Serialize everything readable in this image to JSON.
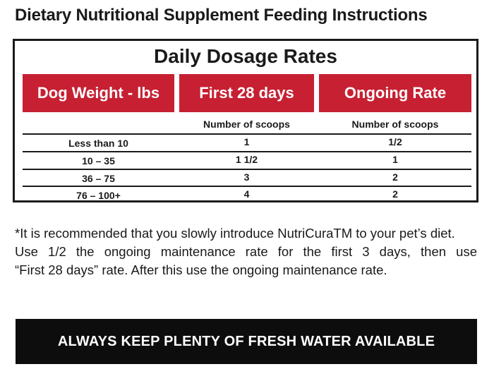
{
  "page_title": "Dietary Nutritional Supplement Feeding Instructions",
  "table": {
    "title": "Daily Dosage Rates",
    "headers": [
      "Dog Weight - lbs",
      "First 28 days",
      "Ongoing Rate"
    ],
    "subheaders": [
      "",
      "Number of scoops",
      "Number of scoops"
    ],
    "rows": [
      [
        "Less than 10",
        "1",
        "1/2"
      ],
      [
        "10 – 35",
        "1 1/2",
        "1"
      ],
      [
        "36 – 75",
        "3",
        "2"
      ],
      [
        "76 – 100+",
        "4",
        "2"
      ]
    ]
  },
  "note": {
    "line1": "*It is recommended that you slowly introduce NutriCuraTM to your pet’s diet.",
    "line2": "Use 1/2 the ongoing maintenance rate for the first 3 days, then use",
    "line3": "“First 28 days” rate. After this use the ongoing maintenance rate."
  },
  "banner": "ALWAYS KEEP PLENTY OF FRESH WATER AVAILABLE",
  "colors": {
    "header_red": "#c62032",
    "banner_black": "#0d0d0d"
  }
}
